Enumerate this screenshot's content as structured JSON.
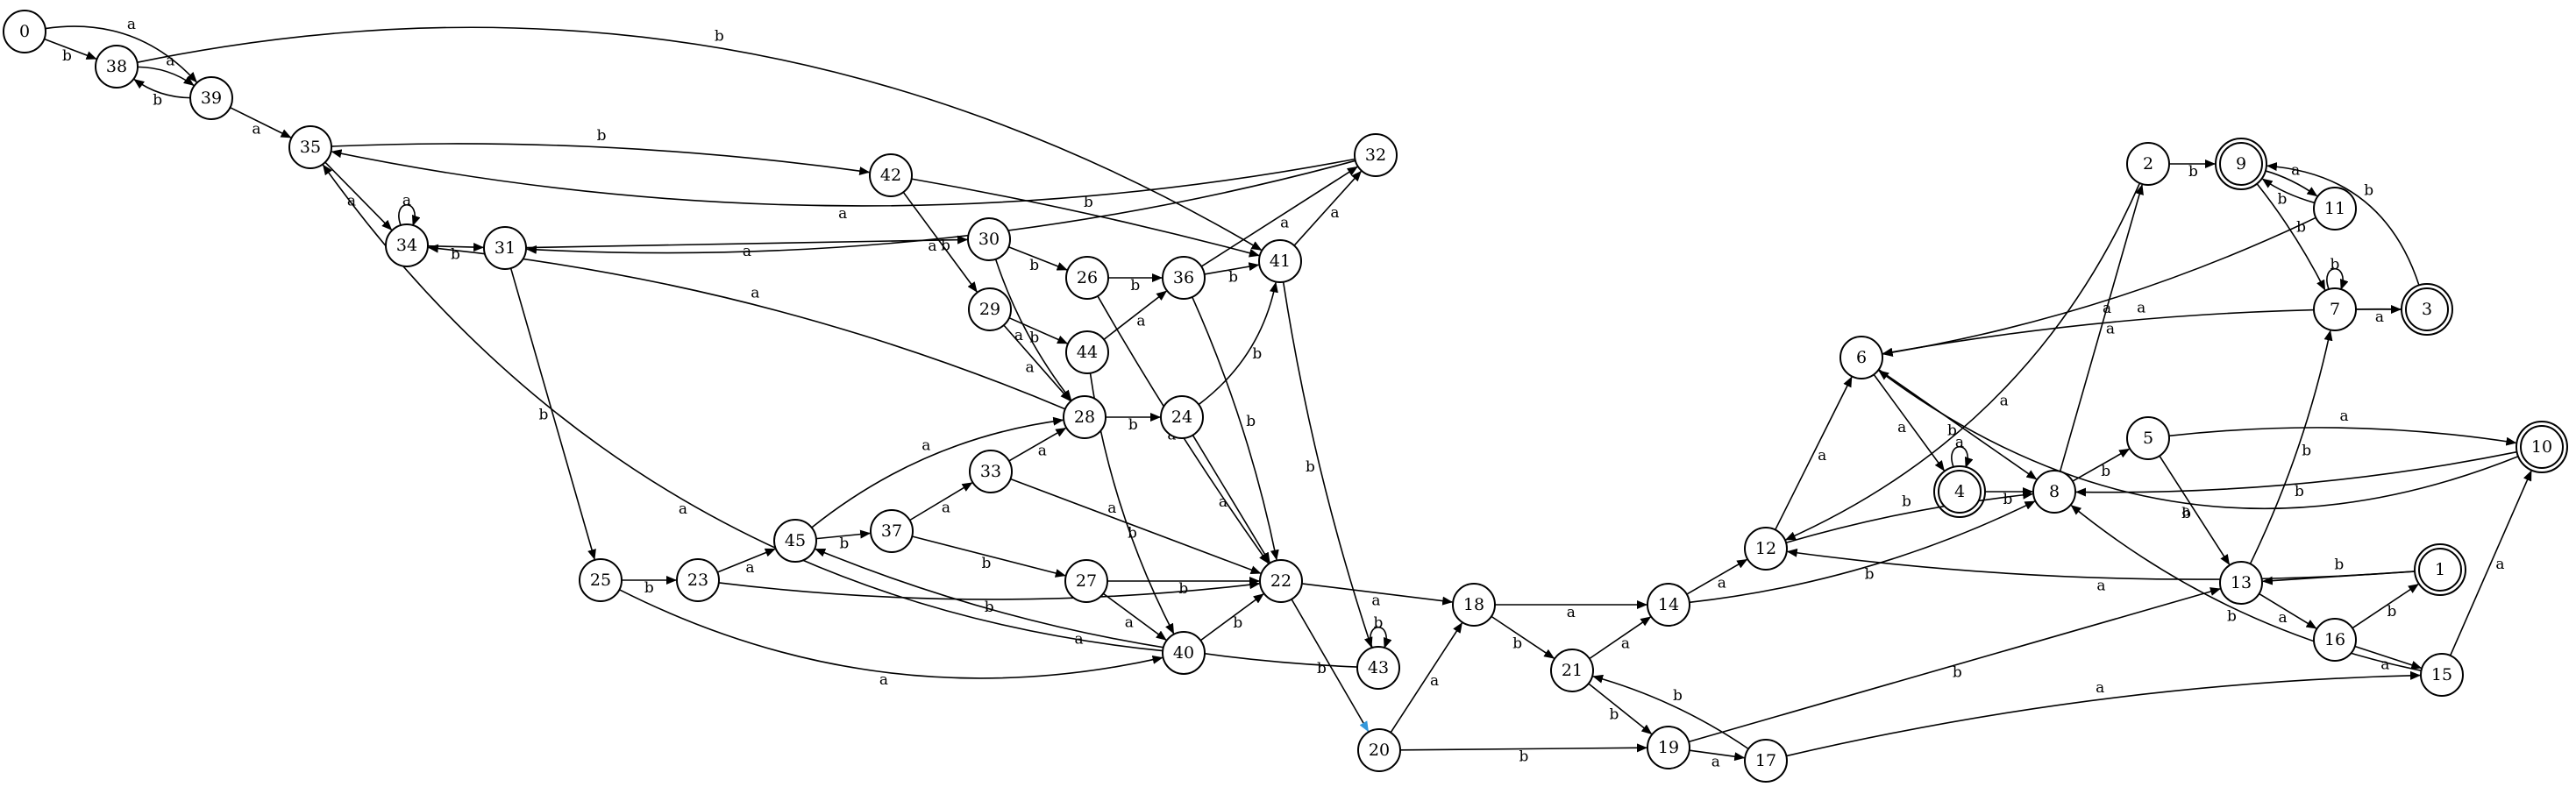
{
  "colors": {
    "start": "#2ecc71",
    "current": "#3498db",
    "accepting": "#e74c3c",
    "normal": "#ffffff",
    "stroke": "#000000",
    "highlight_edge": "#3498db"
  },
  "nodes": [
    {
      "id": "0",
      "label": "0",
      "kind": "start"
    },
    {
      "id": "1",
      "label": "1",
      "kind": "accepting"
    },
    {
      "id": "2",
      "label": "2",
      "kind": "normal"
    },
    {
      "id": "3",
      "label": "3",
      "kind": "accepting"
    },
    {
      "id": "4",
      "label": "4",
      "kind": "accepting"
    },
    {
      "id": "5",
      "label": "5",
      "kind": "normal"
    },
    {
      "id": "6",
      "label": "6",
      "kind": "normal"
    },
    {
      "id": "7",
      "label": "7",
      "kind": "normal"
    },
    {
      "id": "8",
      "label": "8",
      "kind": "normal"
    },
    {
      "id": "9",
      "label": "9",
      "kind": "accepting"
    },
    {
      "id": "10",
      "label": "10",
      "kind": "accepting"
    },
    {
      "id": "11",
      "label": "11",
      "kind": "normal"
    },
    {
      "id": "12",
      "label": "12",
      "kind": "normal"
    },
    {
      "id": "13",
      "label": "13",
      "kind": "normal"
    },
    {
      "id": "14",
      "label": "14",
      "kind": "normal"
    },
    {
      "id": "15",
      "label": "15",
      "kind": "normal"
    },
    {
      "id": "16",
      "label": "16",
      "kind": "normal"
    },
    {
      "id": "17",
      "label": "17",
      "kind": "normal"
    },
    {
      "id": "18",
      "label": "18",
      "kind": "normal"
    },
    {
      "id": "19",
      "label": "19",
      "kind": "normal"
    },
    {
      "id": "20",
      "label": "20",
      "kind": "normal"
    },
    {
      "id": "21",
      "label": "21",
      "kind": "normal"
    },
    {
      "id": "22",
      "label": "22",
      "kind": "current"
    },
    {
      "id": "23",
      "label": "23",
      "kind": "normal"
    },
    {
      "id": "24",
      "label": "24",
      "kind": "normal"
    },
    {
      "id": "25",
      "label": "25",
      "kind": "normal"
    },
    {
      "id": "26",
      "label": "26",
      "kind": "normal"
    },
    {
      "id": "27",
      "label": "27",
      "kind": "normal"
    },
    {
      "id": "28",
      "label": "28",
      "kind": "normal"
    },
    {
      "id": "29",
      "label": "29",
      "kind": "normal"
    },
    {
      "id": "30",
      "label": "30",
      "kind": "normal"
    },
    {
      "id": "31",
      "label": "31",
      "kind": "normal"
    },
    {
      "id": "32",
      "label": "32",
      "kind": "normal"
    },
    {
      "id": "33",
      "label": "33",
      "kind": "normal"
    },
    {
      "id": "34",
      "label": "34",
      "kind": "normal"
    },
    {
      "id": "35",
      "label": "35",
      "kind": "normal"
    },
    {
      "id": "36",
      "label": "36",
      "kind": "normal"
    },
    {
      "id": "37",
      "label": "37",
      "kind": "normal"
    },
    {
      "id": "38",
      "label": "38",
      "kind": "normal"
    },
    {
      "id": "39",
      "label": "39",
      "kind": "normal"
    },
    {
      "id": "40",
      "label": "40",
      "kind": "normal"
    },
    {
      "id": "41",
      "label": "41",
      "kind": "normal"
    },
    {
      "id": "42",
      "label": "42",
      "kind": "normal"
    },
    {
      "id": "43",
      "label": "43",
      "kind": "normal"
    },
    {
      "id": "44",
      "label": "44",
      "kind": "normal"
    },
    {
      "id": "45",
      "label": "45",
      "kind": "normal"
    }
  ],
  "edges": [
    {
      "from": "0",
      "to": "38",
      "label": "b"
    },
    {
      "from": "0",
      "to": "39",
      "label": "a"
    },
    {
      "from": "38",
      "to": "39",
      "label": "a"
    },
    {
      "from": "39",
      "to": "38",
      "label": "b"
    },
    {
      "from": "38",
      "to": "41",
      "label": "b"
    },
    {
      "from": "39",
      "to": "35",
      "label": "a"
    },
    {
      "from": "32",
      "to": "35",
      "label": "a"
    },
    {
      "from": "32",
      "to": "31",
      "label": "b"
    },
    {
      "from": "35",
      "to": "42",
      "label": "b"
    },
    {
      "from": "35",
      "to": "34",
      "label": "a"
    },
    {
      "from": "34",
      "to": "34",
      "label": "a"
    },
    {
      "from": "34",
      "to": "31",
      "label": "b"
    },
    {
      "from": "31",
      "to": "30",
      "label": "a"
    },
    {
      "from": "31",
      "to": "25",
      "label": "b"
    },
    {
      "from": "42",
      "to": "41",
      "label": "b"
    },
    {
      "from": "42",
      "to": "29",
      "label": "a"
    },
    {
      "from": "30",
      "to": "26",
      "label": "b"
    },
    {
      "from": "30",
      "to": "28",
      "label": "a"
    },
    {
      "from": "26",
      "to": "36",
      "label": "b"
    },
    {
      "from": "26",
      "to": "22",
      "label": "a"
    },
    {
      "from": "29",
      "to": "44",
      "label": "b"
    },
    {
      "from": "29",
      "to": "28",
      "label": "a"
    },
    {
      "from": "44",
      "to": "36",
      "label": "a"
    },
    {
      "from": "44",
      "to": "40",
      "label": "a"
    },
    {
      "from": "36",
      "to": "41",
      "label": "b"
    },
    {
      "from": "36",
      "to": "32",
      "label": "a"
    },
    {
      "from": "36",
      "to": "22",
      "label": "b"
    },
    {
      "from": "41",
      "to": "32",
      "label": "a"
    },
    {
      "from": "41",
      "to": "43",
      "label": "b"
    },
    {
      "from": "28",
      "to": "34",
      "label": "a"
    },
    {
      "from": "28",
      "to": "24",
      "label": "b"
    },
    {
      "from": "24",
      "to": "41",
      "label": "b"
    },
    {
      "from": "24",
      "to": "22",
      "label": "a"
    },
    {
      "from": "33",
      "to": "28",
      "label": "a"
    },
    {
      "from": "33",
      "to": "22",
      "label": "b"
    },
    {
      "from": "45",
      "to": "28",
      "label": "a"
    },
    {
      "from": "45",
      "to": "37",
      "label": "b"
    },
    {
      "from": "37",
      "to": "33",
      "label": "a"
    },
    {
      "from": "37",
      "to": "27",
      "label": "b"
    },
    {
      "from": "27",
      "to": "22",
      "label": "b"
    },
    {
      "from": "27",
      "to": "40",
      "label": "a"
    },
    {
      "from": "25",
      "to": "23",
      "label": "b"
    },
    {
      "from": "25",
      "to": "40",
      "label": "a"
    },
    {
      "from": "23",
      "to": "45",
      "label": "a"
    },
    {
      "from": "23",
      "to": "22",
      "label": "b"
    },
    {
      "from": "40",
      "to": "22",
      "label": "b"
    },
    {
      "from": "40",
      "to": "35",
      "label": "a"
    },
    {
      "from": "43",
      "to": "43",
      "label": "b"
    },
    {
      "from": "43",
      "to": "45",
      "label": "a"
    },
    {
      "from": "22",
      "to": "18",
      "label": "a"
    },
    {
      "from": "22",
      "to": "20",
      "label": "b",
      "highlight": true
    },
    {
      "from": "20",
      "to": "18",
      "label": "a"
    },
    {
      "from": "20",
      "to": "19",
      "label": "b"
    },
    {
      "from": "18",
      "to": "14",
      "label": "a"
    },
    {
      "from": "18",
      "to": "21",
      "label": "b"
    },
    {
      "from": "21",
      "to": "14",
      "label": "a"
    },
    {
      "from": "21",
      "to": "19",
      "label": "b"
    },
    {
      "from": "19",
      "to": "17",
      "label": "a"
    },
    {
      "from": "19",
      "to": "13",
      "label": "b"
    },
    {
      "from": "17",
      "to": "21",
      "label": "b"
    },
    {
      "from": "17",
      "to": "15",
      "label": "a"
    },
    {
      "from": "14",
      "to": "12",
      "label": "a"
    },
    {
      "from": "14",
      "to": "8",
      "label": "b"
    },
    {
      "from": "12",
      "to": "6",
      "label": "a"
    },
    {
      "from": "12",
      "to": "8",
      "label": "b"
    },
    {
      "from": "2",
      "to": "12",
      "label": "a"
    },
    {
      "from": "2",
      "to": "9",
      "label": "b"
    },
    {
      "from": "9",
      "to": "11",
      "label": "a"
    },
    {
      "from": "11",
      "to": "9",
      "label": "b"
    },
    {
      "from": "9",
      "to": "7",
      "label": "b"
    },
    {
      "from": "11",
      "to": "6",
      "label": "a"
    },
    {
      "from": "7",
      "to": "7",
      "label": "b"
    },
    {
      "from": "7",
      "to": "3",
      "label": "a"
    },
    {
      "from": "3",
      "to": "9",
      "label": "b"
    },
    {
      "from": "3",
      "to": "6",
      "label": "a"
    },
    {
      "from": "10",
      "to": "6",
      "label": "a"
    },
    {
      "from": "10",
      "to": "8",
      "label": "b"
    },
    {
      "from": "6",
      "to": "4",
      "label": "a"
    },
    {
      "from": "6",
      "to": "8",
      "label": "b"
    },
    {
      "from": "4",
      "to": "4",
      "label": "a"
    },
    {
      "from": "4",
      "to": "8",
      "label": "b"
    },
    {
      "from": "8",
      "to": "2",
      "label": "a"
    },
    {
      "from": "8",
      "to": "5",
      "label": "b"
    },
    {
      "from": "5",
      "to": "10",
      "label": "a"
    },
    {
      "from": "5",
      "to": "13",
      "label": "b"
    },
    {
      "from": "13",
      "to": "7",
      "label": "b"
    },
    {
      "from": "13",
      "to": "16",
      "label": "a"
    },
    {
      "from": "16",
      "to": "1",
      "label": "b"
    },
    {
      "from": "16",
      "to": "15",
      "label": "a"
    },
    {
      "from": "1",
      "to": "13",
      "label": "b"
    },
    {
      "from": "1",
      "to": "12",
      "label": "a"
    },
    {
      "from": "15",
      "to": "8",
      "label": "b"
    },
    {
      "from": "15",
      "to": "10",
      "label": "a"
    }
  ]
}
